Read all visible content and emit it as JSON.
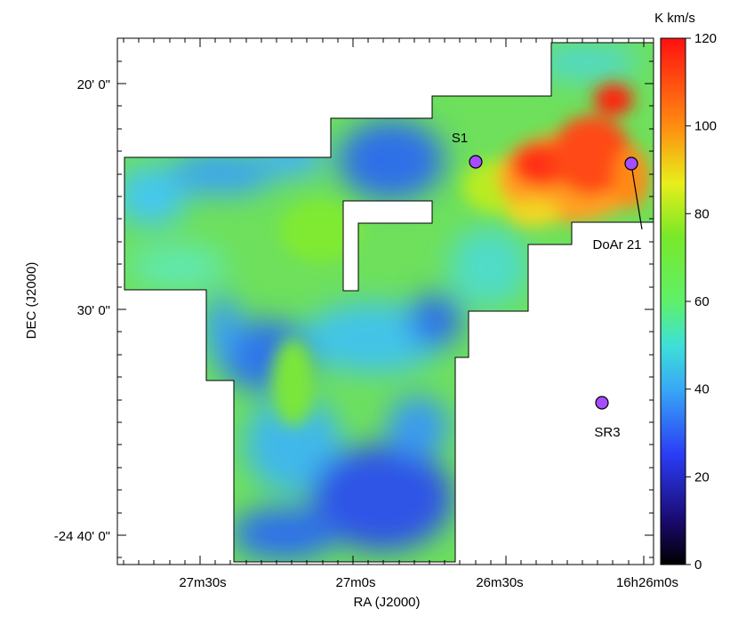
{
  "chart_data": {
    "type": "heatmap",
    "xlabel": "RA (J2000)",
    "ylabel": "DEC (J2000)",
    "x_tick_labels": [
      "27m30s",
      "27m0s",
      "26m30s",
      "16h26m0s"
    ],
    "y_tick_labels": [
      "20' 0\"",
      "30' 0\"",
      "-24 40' 0\""
    ],
    "colorbar": {
      "unit": "K km/s",
      "range": [
        0,
        120
      ],
      "tick_labels": [
        "0",
        "20",
        "40",
        "60",
        "80",
        "100",
        "120"
      ],
      "tick_values": [
        0,
        20,
        40,
        60,
        80,
        100,
        120
      ],
      "colormap_stops": [
        {
          "value": 0,
          "color": "#000000"
        },
        {
          "value": 10,
          "color": "#1a0a6e"
        },
        {
          "value": 25,
          "color": "#2a3cf5"
        },
        {
          "value": 40,
          "color": "#38a8f5"
        },
        {
          "value": 50,
          "color": "#3ee0d8"
        },
        {
          "value": 60,
          "color": "#5ef06a"
        },
        {
          "value": 75,
          "color": "#7ae828"
        },
        {
          "value": 87,
          "color": "#e8ee1a"
        },
        {
          "value": 100,
          "color": "#ff8c10"
        },
        {
          "value": 120,
          "color": "#ff1010"
        }
      ]
    },
    "sources": [
      {
        "name": "S1",
        "ra": "16h26m34s",
        "dec": "-24 23' 25\""
      },
      {
        "name": "DoAr 21",
        "ra": "16h26m03s",
        "dec": "-24 23' 30\""
      },
      {
        "name": "SR3",
        "ra": "16h26m09s",
        "dec": "-24 34' 25\""
      }
    ],
    "source_marker_color": "#a64dff"
  }
}
